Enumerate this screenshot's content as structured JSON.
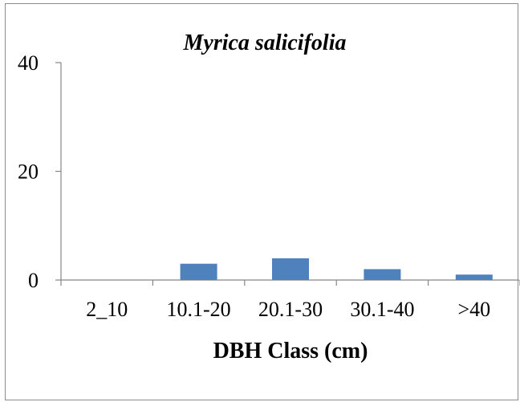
{
  "chart_data": {
    "type": "bar",
    "title": "Myrica salicifolia",
    "xlabel": "DBH Class (cm)",
    "ylabel": "",
    "categories": [
      "2_10",
      "10.1-20",
      "20.1-30",
      "30.1-40",
      ">40"
    ],
    "values": [
      0,
      3,
      4,
      2,
      1
    ],
    "ylim": [
      0,
      40
    ],
    "yticks": [
      "0",
      "20",
      "40"
    ],
    "grid": false,
    "legend": "none",
    "bar_color": "#4f81bd",
    "axis_color": "#868686"
  }
}
